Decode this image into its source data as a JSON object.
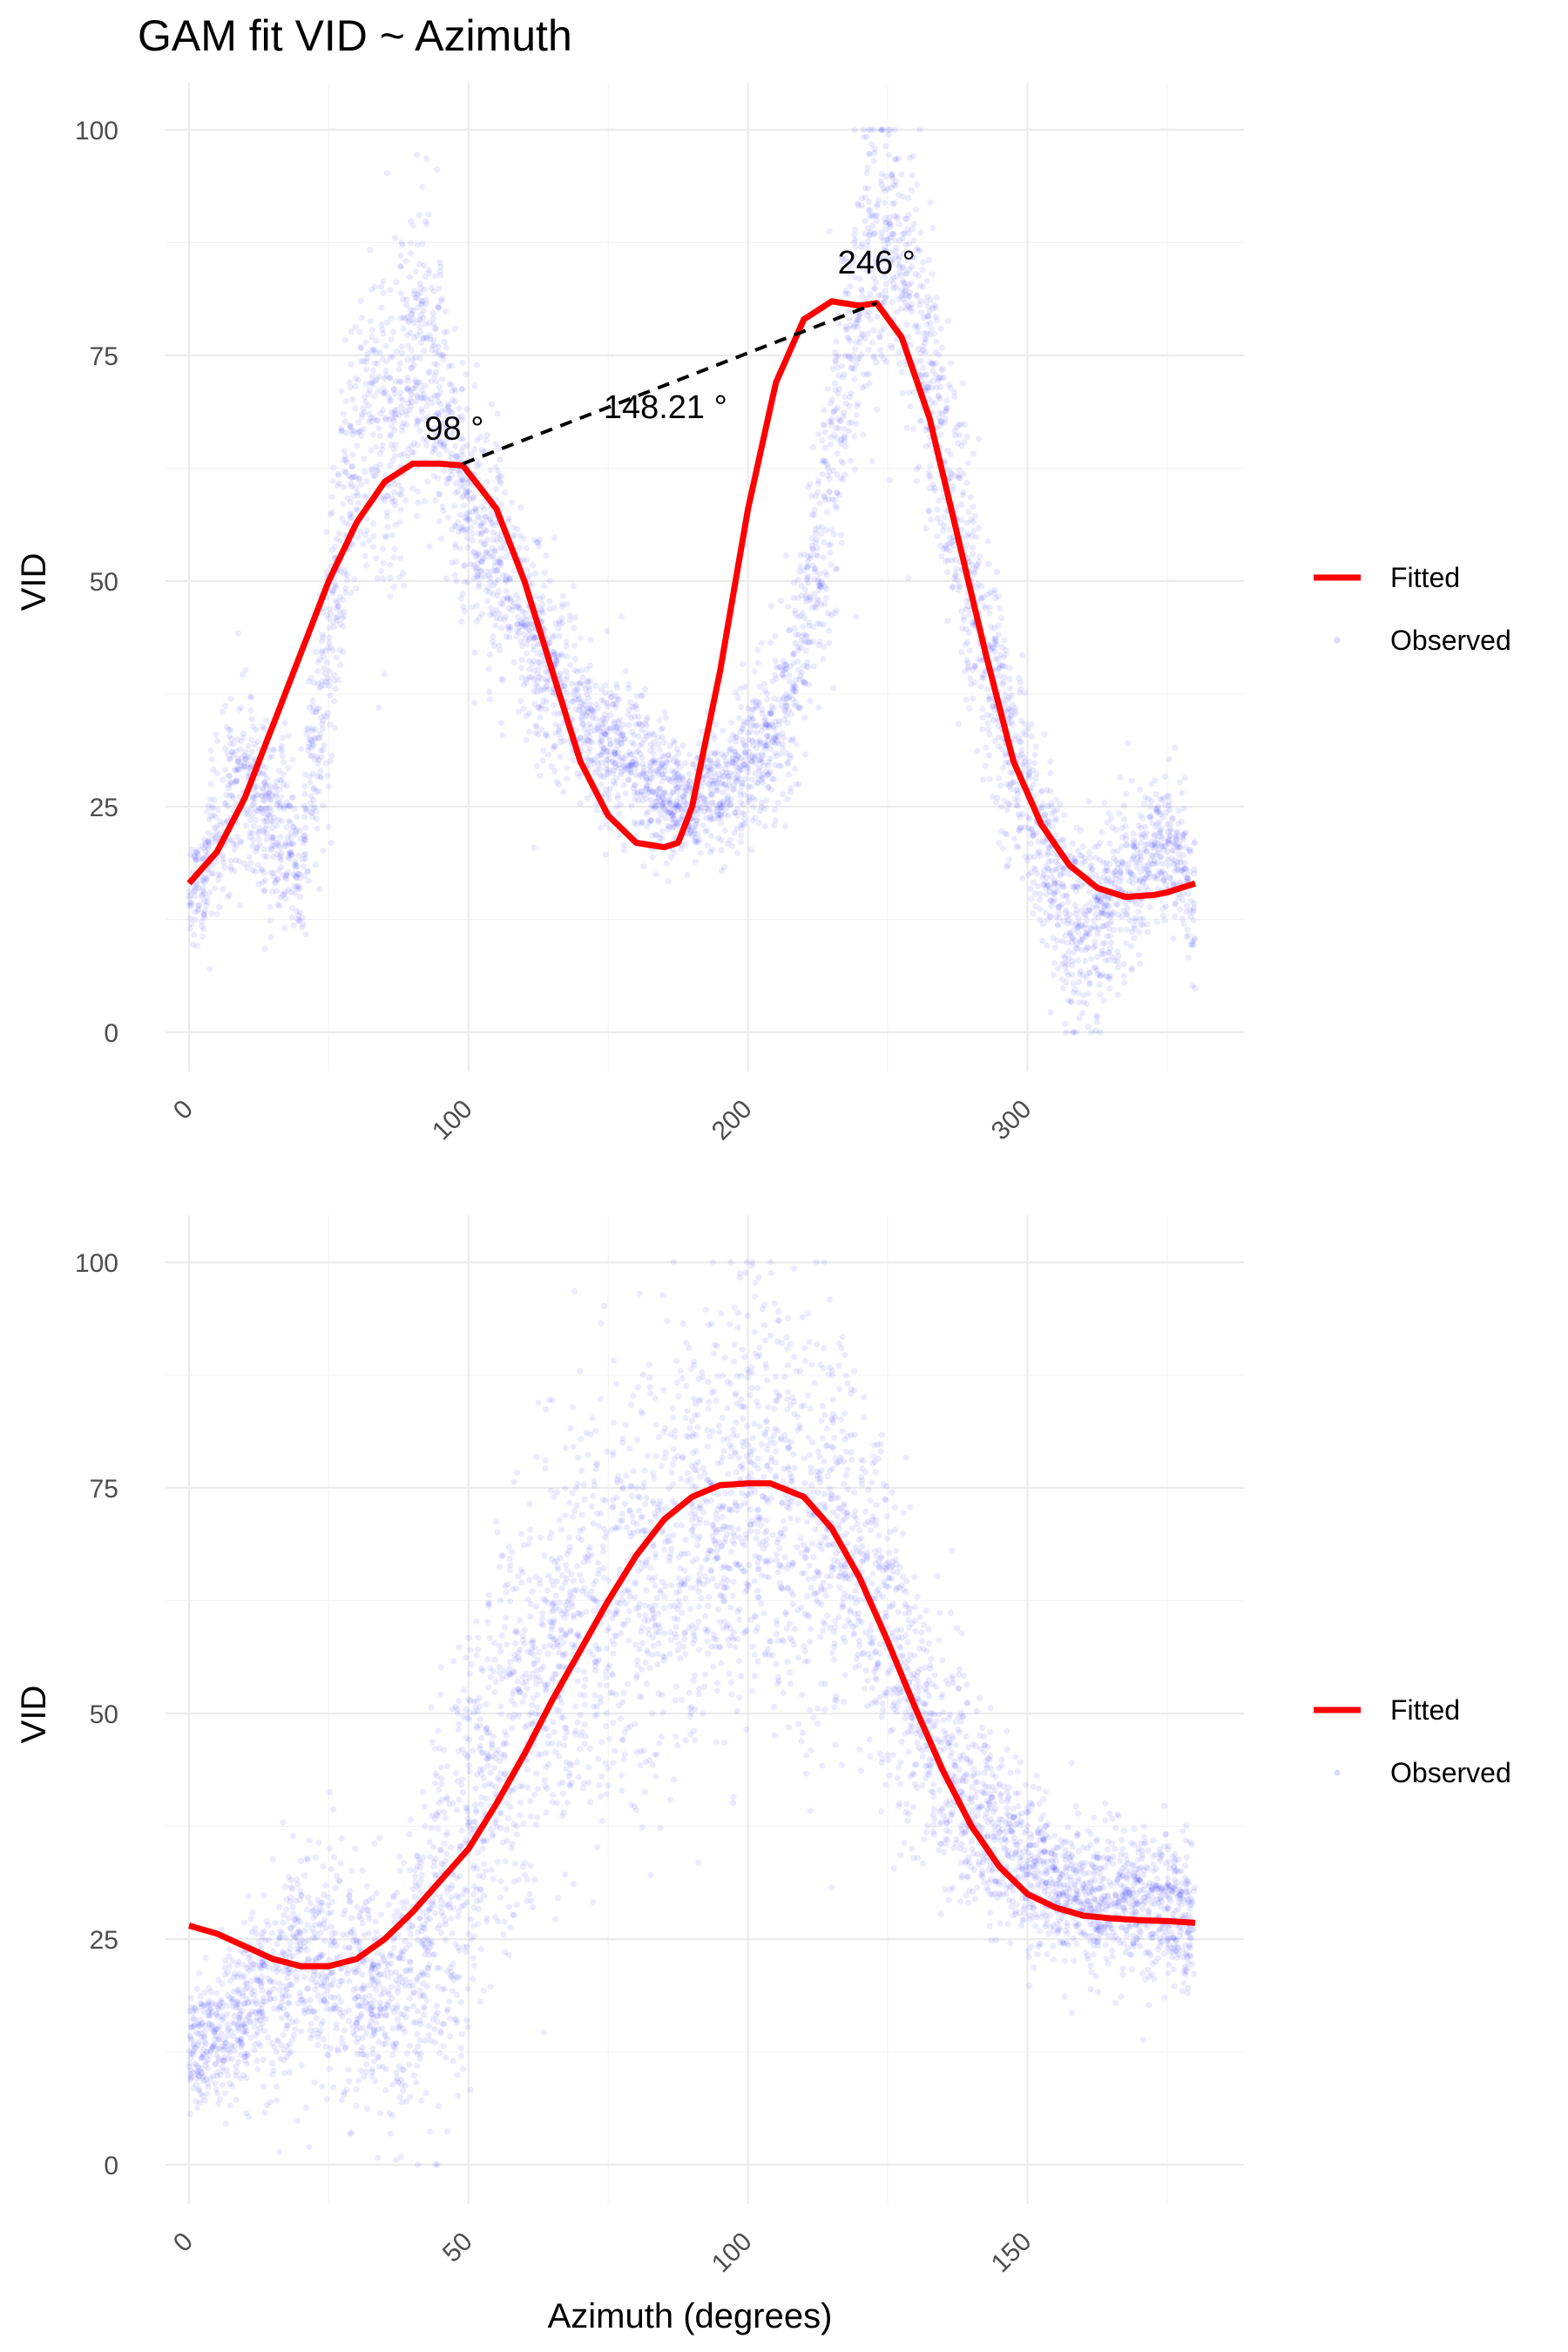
{
  "title": "GAM fit VID ~ Azimuth",
  "colors": {
    "fitted": "#ff0000",
    "observed": "#0000ff",
    "annotation": "#000000"
  },
  "chart_data": [
    {
      "type": "scatter",
      "panel": "top",
      "xlabel": "",
      "ylabel": "VID",
      "xlim": [
        0,
        360
      ],
      "ylim": [
        0,
        100
      ],
      "x_ticks": [
        0,
        100,
        200,
        300
      ],
      "y_ticks": [
        0,
        25,
        50,
        75,
        100
      ],
      "grid": true,
      "legend": {
        "position": "right",
        "entries": [
          "Fitted",
          "Observed"
        ]
      },
      "series": [
        {
          "name": "Fitted",
          "kind": "line",
          "color": "#ff0000",
          "x": [
            0,
            10,
            20,
            30,
            40,
            50,
            60,
            70,
            80,
            90,
            98,
            110,
            120,
            130,
            140,
            150,
            160,
            170,
            175,
            180,
            190,
            200,
            210,
            220,
            230,
            240,
            246,
            255,
            265,
            275,
            285,
            295,
            305,
            315,
            325,
            335,
            345,
            350,
            360
          ],
          "y": [
            16.5,
            20,
            26,
            34,
            42,
            50,
            56.5,
            61,
            63,
            63,
            62.8,
            58,
            50,
            40,
            30,
            24,
            21,
            20.5,
            21,
            25,
            40,
            58,
            72,
            79,
            81,
            80.5,
            80.8,
            77,
            68,
            55,
            42,
            30,
            23,
            18.5,
            16,
            15,
            15.2,
            15.5,
            16.5
          ]
        },
        {
          "name": "Observed",
          "kind": "points",
          "color": "#0000ff",
          "opacity": 0.08,
          "x": [
            0,
            5,
            10,
            15,
            20,
            25,
            30,
            35,
            40,
            45,
            50,
            55,
            60,
            65,
            70,
            75,
            80,
            85,
            90,
            95,
            100,
            105,
            110,
            115,
            120,
            125,
            130,
            135,
            140,
            145,
            150,
            155,
            160,
            165,
            170,
            175,
            180,
            185,
            190,
            195,
            200,
            205,
            210,
            215,
            220,
            225,
            230,
            235,
            240,
            245,
            250,
            255,
            260,
            265,
            270,
            275,
            280,
            285,
            290,
            295,
            300,
            305,
            310,
            315,
            320,
            325,
            330,
            335,
            340,
            345,
            350,
            355,
            360
          ],
          "y": [
            14,
            17,
            22,
            26,
            28,
            25,
            22,
            22,
            18,
            30,
            43,
            55,
            65,
            68,
            66,
            68,
            74,
            76,
            72,
            62,
            57,
            54,
            53,
            49,
            45,
            43,
            40,
            38,
            36,
            33,
            32,
            31,
            30,
            28,
            27,
            26,
            25,
            27,
            26,
            28,
            30,
            32,
            34,
            38,
            44,
            52,
            62,
            72,
            82,
            86,
            88,
            85,
            80,
            72,
            64,
            56,
            48,
            42,
            36,
            30,
            26,
            20,
            16,
            12,
            12,
            13,
            14,
            16,
            18,
            20,
            21,
            20,
            12
          ],
          "spread": [
            3,
            4,
            5,
            5,
            5,
            5,
            5,
            5,
            5,
            7,
            8,
            8,
            9,
            9,
            9,
            9,
            9,
            9,
            8,
            7,
            6,
            6,
            6,
            6,
            6,
            6,
            5,
            5,
            4,
            4,
            4,
            4,
            4,
            4,
            4,
            3,
            3,
            3,
            3,
            4,
            4,
            4,
            5,
            5,
            6,
            7,
            8,
            8,
            8,
            8,
            8,
            8,
            8,
            8,
            8,
            8,
            7,
            7,
            6,
            6,
            6,
            5,
            5,
            5,
            5,
            5,
            5,
            5,
            4,
            4,
            4,
            4,
            4
          ],
          "count": 5200
        }
      ],
      "annotations": {
        "peak1": {
          "label": "98 °",
          "x": 98,
          "y": 63
        },
        "peak2": {
          "label": "246 °",
          "x": 246,
          "y": 80.8
        },
        "separation": {
          "label": "148.21 °"
        }
      }
    },
    {
      "type": "scatter",
      "panel": "bottom",
      "xlabel": "Azimuth (degrees)",
      "ylabel": "VID",
      "xlim": [
        0,
        180
      ],
      "ylim": [
        0,
        100
      ],
      "x_ticks": [
        0,
        50,
        100,
        150
      ],
      "y_ticks": [
        0,
        25,
        50,
        75,
        100
      ],
      "grid": true,
      "legend": {
        "position": "right",
        "entries": [
          "Fitted",
          "Observed"
        ]
      },
      "series": [
        {
          "name": "Fitted",
          "kind": "line",
          "color": "#ff0000",
          "x": [
            0,
            5,
            10,
            15,
            20,
            25,
            30,
            35,
            40,
            45,
            50,
            55,
            60,
            65,
            70,
            75,
            80,
            85,
            90,
            95,
            100,
            104,
            110,
            115,
            120,
            125,
            130,
            135,
            140,
            145,
            150,
            155,
            160,
            165,
            170,
            175,
            180
          ],
          "y": [
            26.5,
            25.6,
            24.2,
            22.8,
            22,
            22,
            22.8,
            25,
            28,
            31.5,
            35,
            40,
            45.5,
            51.5,
            57,
            62.5,
            67.5,
            71.5,
            74,
            75.3,
            75.5,
            75.5,
            74,
            70.5,
            65,
            58,
            50.5,
            43.5,
            37.5,
            33,
            30,
            28.5,
            27.6,
            27.3,
            27.1,
            27,
            26.8
          ]
        },
        {
          "name": "Observed",
          "kind": "points",
          "color": "#0000ff",
          "opacity": 0.08,
          "x": [
            0,
            5,
            10,
            15,
            20,
            25,
            30,
            35,
            40,
            45,
            50,
            55,
            60,
            65,
            70,
            75,
            80,
            85,
            90,
            95,
            100,
            105,
            110,
            115,
            120,
            125,
            130,
            135,
            140,
            145,
            150,
            155,
            160,
            165,
            170,
            175,
            180
          ],
          "y": [
            12,
            15,
            17,
            20,
            22,
            22,
            20,
            17,
            20,
            28,
            36,
            44,
            52,
            58,
            60,
            62,
            65,
            68,
            70,
            72,
            74,
            74,
            72,
            70,
            66,
            58,
            50,
            44,
            40,
            36,
            33,
            31,
            30,
            29,
            29,
            28,
            27
          ],
          "spread": [
            4,
            4,
            5,
            6,
            7,
            7,
            7,
            6,
            8,
            10,
            11,
            11,
            12,
            12,
            12,
            12,
            12,
            12,
            12,
            12,
            12,
            12,
            11,
            11,
            10,
            9,
            8,
            7,
            6,
            5,
            5,
            4,
            4,
            4,
            4,
            4,
            4
          ],
          "count": 5200
        }
      ]
    }
  ]
}
